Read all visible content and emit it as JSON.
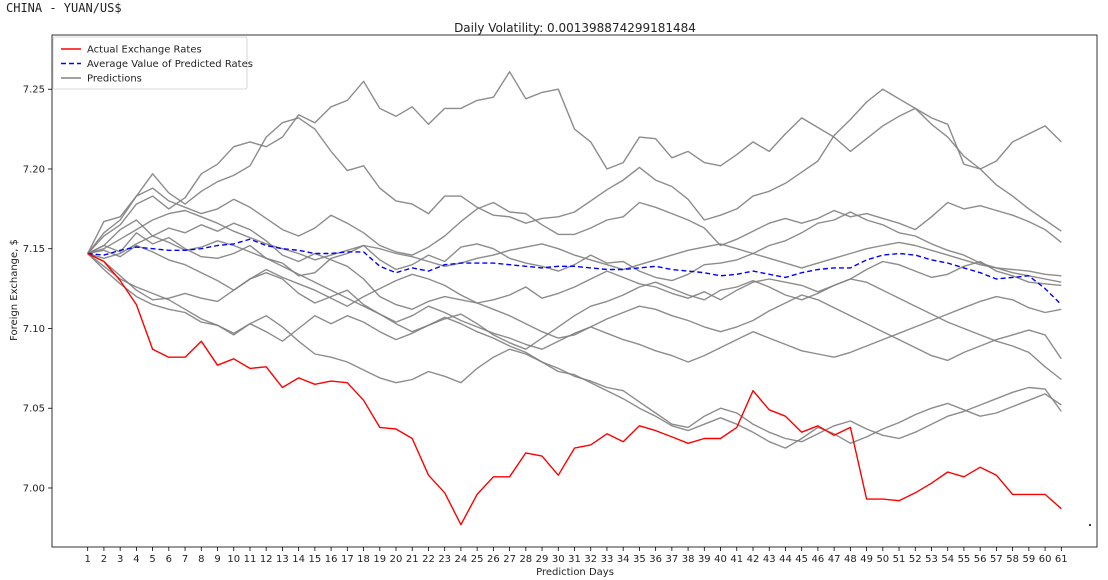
{
  "header": {
    "label": "CHINA - YUAN/US$"
  },
  "chart_data": {
    "type": "line",
    "title": "Daily Volatility: 0.001398874299181484",
    "xlabel": "Prediction Days",
    "ylabel": "Foreign Exchange, $",
    "xlim": [
      -1.2,
      63.2
    ],
    "ylim": [
      6.963,
      7.284
    ],
    "x": [
      1,
      2,
      3,
      4,
      5,
      6,
      7,
      8,
      9,
      10,
      11,
      12,
      13,
      14,
      15,
      16,
      17,
      18,
      19,
      20,
      21,
      22,
      23,
      24,
      25,
      26,
      27,
      28,
      29,
      30,
      31,
      32,
      33,
      34,
      35,
      36,
      37,
      38,
      39,
      40,
      41,
      42,
      43,
      44,
      45,
      46,
      47,
      48,
      49,
      50,
      51,
      52,
      53,
      54,
      55,
      56,
      57,
      58,
      59,
      60,
      61
    ],
    "x_tick_labels": [
      "1",
      "2",
      "3",
      "4",
      "5",
      "6",
      "7",
      "8",
      "9",
      "10",
      "11",
      "12",
      "13",
      "14",
      "15",
      "16",
      "17",
      "18",
      "19",
      "20",
      "21",
      "22",
      "23",
      "24",
      "25",
      "26",
      "27",
      "28",
      "29",
      "30",
      "31",
      "32",
      "33",
      "34",
      "35",
      "36",
      "37",
      "38",
      "39",
      "40",
      "41",
      "42",
      "43",
      "44",
      "45",
      "46",
      "47",
      "48",
      "49",
      "50",
      "51",
      "52",
      "53",
      "54",
      "55",
      "56",
      "57",
      "58",
      "59",
      "60",
      "61"
    ],
    "y_ticks": [
      7.0,
      7.05,
      7.1,
      7.15,
      7.2,
      7.25
    ],
    "y_tick_labels": [
      "7.00",
      "7.05",
      "7.10",
      "7.15",
      "7.20",
      "7.25"
    ],
    "grid": false,
    "legend_position": "top-left",
    "legend": [
      {
        "label": "Actual Exchange Rates",
        "color": "#ff0000",
        "style": "solid"
      },
      {
        "label": "Average Value of Predicted Rates",
        "color": "#0000ff",
        "style": "dashed"
      },
      {
        "label": "Predictions",
        "color": "#808080",
        "style": "solid"
      }
    ],
    "series": [
      {
        "name": "Actual Exchange Rates",
        "color": "#ff0000",
        "style": "solid",
        "values": [
          7.147,
          7.142,
          7.13,
          7.115,
          7.087,
          7.082,
          7.082,
          7.092,
          7.077,
          7.081,
          7.075,
          7.076,
          7.063,
          7.069,
          7.065,
          7.067,
          7.066,
          7.055,
          7.038,
          7.037,
          7.031,
          7.008,
          6.997,
          6.977,
          6.996,
          7.007,
          7.007,
          7.022,
          7.02,
          7.008,
          7.025,
          7.027,
          7.034,
          7.029,
          7.039,
          7.036,
          7.032,
          7.028,
          7.031,
          7.031,
          7.038,
          7.061,
          7.049,
          7.045,
          7.035,
          7.039,
          7.033,
          7.038,
          6.993,
          6.993,
          6.992,
          6.997,
          7.003,
          7.01,
          7.007,
          7.013,
          7.008,
          6.996,
          6.996,
          6.996,
          6.987
        ]
      },
      {
        "name": "Average Value of Predicted Rates",
        "color": "#0000ff",
        "style": "dashed",
        "values": [
          7.147,
          7.146,
          7.149,
          7.151,
          7.15,
          7.149,
          7.149,
          7.15,
          7.152,
          7.153,
          7.156,
          7.152,
          7.15,
          7.149,
          7.147,
          7.147,
          7.148,
          7.148,
          7.139,
          7.135,
          7.138,
          7.136,
          7.14,
          7.141,
          7.141,
          7.141,
          7.14,
          7.139,
          7.138,
          7.139,
          7.139,
          7.138,
          7.137,
          7.137,
          7.138,
          7.139,
          7.137,
          7.136,
          7.135,
          7.133,
          7.134,
          7.136,
          7.134,
          7.132,
          7.135,
          7.137,
          7.138,
          7.138,
          7.143,
          7.146,
          7.147,
          7.146,
          7.143,
          7.141,
          7.138,
          7.135,
          7.131,
          7.132,
          7.133,
          7.125,
          7.115
        ]
      },
      {
        "color": "#808080",
        "style": "solid",
        "values": [
          7.147,
          7.158,
          7.165,
          7.178,
          7.183,
          7.175,
          7.182,
          7.197,
          7.203,
          7.214,
          7.217,
          7.214,
          7.22,
          7.234,
          7.229,
          7.239,
          7.243,
          7.255,
          7.238,
          7.233,
          7.239,
          7.228,
          7.238,
          7.238,
          7.243,
          7.245,
          7.261,
          7.244,
          7.248,
          7.25,
          7.225,
          7.217,
          7.2,
          7.204,
          7.22,
          7.219,
          7.207,
          7.211,
          7.204,
          7.202,
          7.209,
          7.217,
          7.211,
          7.222,
          7.232,
          7.226,
          7.22,
          7.211,
          7.219,
          7.227,
          7.233,
          7.238,
          7.232,
          7.228,
          7.203,
          7.2,
          7.205,
          7.217,
          7.222,
          7.227,
          7.217
        ]
      },
      {
        "color": "#808080",
        "style": "solid",
        "values": [
          7.147,
          7.16,
          7.168,
          7.183,
          7.197,
          7.185,
          7.178,
          7.186,
          7.192,
          7.196,
          7.202,
          7.22,
          7.229,
          7.232,
          7.225,
          7.211,
          7.199,
          7.202,
          7.188,
          7.18,
          7.178,
          7.172,
          7.183,
          7.183,
          7.176,
          7.171,
          7.17,
          7.166,
          7.169,
          7.17,
          7.173,
          7.18,
          7.187,
          7.193,
          7.201,
          7.193,
          7.189,
          7.181,
          7.168,
          7.171,
          7.175,
          7.183,
          7.186,
          7.191,
          7.198,
          7.205,
          7.221,
          7.231,
          7.242,
          7.25,
          7.244,
          7.238,
          7.228,
          7.22,
          7.208,
          7.2,
          7.19,
          7.183,
          7.175,
          7.168,
          7.161
        ]
      },
      {
        "color": "#808080",
        "style": "solid",
        "values": [
          7.147,
          7.167,
          7.17,
          7.183,
          7.188,
          7.18,
          7.176,
          7.172,
          7.175,
          7.181,
          7.176,
          7.169,
          7.162,
          7.158,
          7.163,
          7.171,
          7.166,
          7.16,
          7.152,
          7.148,
          7.146,
          7.151,
          7.158,
          7.167,
          7.175,
          7.179,
          7.173,
          7.172,
          7.165,
          7.159,
          7.159,
          7.163,
          7.168,
          7.17,
          7.179,
          7.176,
          7.172,
          7.168,
          7.163,
          7.152,
          7.156,
          7.161,
          7.166,
          7.169,
          7.166,
          7.169,
          7.174,
          7.17,
          7.172,
          7.169,
          7.166,
          7.162,
          7.17,
          7.179,
          7.175,
          7.177,
          7.174,
          7.171,
          7.167,
          7.162,
          7.154
        ]
      },
      {
        "color": "#808080",
        "style": "solid",
        "values": [
          7.147,
          7.152,
          7.148,
          7.16,
          7.153,
          7.157,
          7.15,
          7.145,
          7.144,
          7.147,
          7.152,
          7.144,
          7.141,
          7.133,
          7.135,
          7.144,
          7.147,
          7.152,
          7.143,
          7.137,
          7.14,
          7.146,
          7.142,
          7.151,
          7.153,
          7.15,
          7.144,
          7.141,
          7.139,
          7.136,
          7.14,
          7.146,
          7.141,
          7.142,
          7.136,
          7.132,
          7.13,
          7.134,
          7.14,
          7.141,
          7.143,
          7.147,
          7.152,
          7.155,
          7.16,
          7.166,
          7.168,
          7.173,
          7.168,
          7.165,
          7.16,
          7.158,
          7.153,
          7.149,
          7.146,
          7.141,
          7.138,
          7.137,
          7.136,
          7.134,
          7.133
        ]
      },
      {
        "color": "#808080",
        "style": "solid",
        "values": [
          7.147,
          7.152,
          7.162,
          7.168,
          7.158,
          7.163,
          7.16,
          7.165,
          7.161,
          7.166,
          7.162,
          7.155,
          7.146,
          7.142,
          7.147,
          7.143,
          7.139,
          7.131,
          7.12,
          7.115,
          7.112,
          7.117,
          7.12,
          7.118,
          7.116,
          7.118,
          7.121,
          7.126,
          7.119,
          7.122,
          7.126,
          7.131,
          7.136,
          7.132,
          7.128,
          7.126,
          7.122,
          7.119,
          7.123,
          7.118,
          7.124,
          7.129,
          7.131,
          7.129,
          7.127,
          7.123,
          7.127,
          7.131,
          7.137,
          7.142,
          7.14,
          7.136,
          7.132,
          7.134,
          7.139,
          7.142,
          7.136,
          7.133,
          7.129,
          7.128,
          7.127
        ]
      },
      {
        "color": "#808080",
        "style": "solid",
        "values": [
          7.147,
          7.142,
          7.133,
          7.124,
          7.118,
          7.119,
          7.122,
          7.119,
          7.117,
          7.124,
          7.131,
          7.135,
          7.131,
          7.122,
          7.116,
          7.12,
          7.124,
          7.115,
          7.109,
          7.103,
          7.098,
          7.102,
          7.106,
          7.109,
          7.103,
          7.096,
          7.091,
          7.087,
          7.094,
          7.101,
          7.108,
          7.114,
          7.117,
          7.121,
          7.126,
          7.129,
          7.125,
          7.121,
          7.118,
          7.124,
          7.126,
          7.13,
          7.126,
          7.121,
          7.118,
          7.122,
          7.127,
          7.131,
          7.129,
          7.124,
          7.119,
          7.114,
          7.109,
          7.104,
          7.1,
          7.096,
          7.092,
          7.089,
          7.085,
          7.076,
          7.068
        ]
      },
      {
        "color": "#808080",
        "style": "solid",
        "values": [
          7.147,
          7.137,
          7.128,
          7.12,
          7.115,
          7.112,
          7.11,
          7.104,
          7.102,
          7.096,
          7.103,
          7.108,
          7.101,
          7.092,
          7.084,
          7.082,
          7.079,
          7.074,
          7.069,
          7.066,
          7.068,
          7.073,
          7.07,
          7.066,
          7.075,
          7.082,
          7.087,
          7.084,
          7.079,
          7.075,
          7.07,
          7.067,
          7.063,
          7.061,
          7.054,
          7.047,
          7.04,
          7.038,
          7.045,
          7.05,
          7.047,
          7.04,
          7.035,
          7.031,
          7.029,
          7.034,
          7.039,
          7.042,
          7.037,
          7.033,
          7.031,
          7.035,
          7.04,
          7.045,
          7.048,
          7.052,
          7.056,
          7.06,
          7.063,
          7.062,
          7.048
        ]
      },
      {
        "color": "#808080",
        "style": "solid",
        "values": [
          7.147,
          7.139,
          7.131,
          7.126,
          7.122,
          7.118,
          7.112,
          7.106,
          7.102,
          7.097,
          7.103,
          7.098,
          7.092,
          7.1,
          7.108,
          7.103,
          7.108,
          7.104,
          7.098,
          7.093,
          7.097,
          7.102,
          7.107,
          7.103,
          7.098,
          7.094,
          7.089,
          7.085,
          7.079,
          7.073,
          7.071,
          7.066,
          7.061,
          7.056,
          7.05,
          7.045,
          7.039,
          7.036,
          7.04,
          7.044,
          7.04,
          7.035,
          7.029,
          7.025,
          7.031,
          7.038,
          7.034,
          7.028,
          7.032,
          7.037,
          7.041,
          7.046,
          7.05,
          7.053,
          7.049,
          7.045,
          7.047,
          7.051,
          7.055,
          7.059,
          7.052
        ]
      },
      {
        "color": "#808080",
        "style": "solid",
        "values": [
          7.147,
          7.149,
          7.145,
          7.152,
          7.148,
          7.143,
          7.14,
          7.135,
          7.13,
          7.124,
          7.131,
          7.137,
          7.132,
          7.128,
          7.124,
          7.119,
          7.114,
          7.12,
          7.125,
          7.13,
          7.134,
          7.131,
          7.127,
          7.121,
          7.116,
          7.112,
          7.108,
          7.103,
          7.098,
          7.094,
          7.096,
          7.101,
          7.106,
          7.11,
          7.114,
          7.112,
          7.108,
          7.105,
          7.101,
          7.098,
          7.101,
          7.105,
          7.111,
          7.116,
          7.121,
          7.118,
          7.113,
          7.108,
          7.103,
          7.098,
          7.093,
          7.088,
          7.083,
          7.08,
          7.085,
          7.089,
          7.093,
          7.096,
          7.099,
          7.096,
          7.081
        ]
      },
      {
        "color": "#808080",
        "style": "solid",
        "values": [
          7.147,
          7.144,
          7.147,
          7.153,
          7.158,
          7.154,
          7.149,
          7.151,
          7.155,
          7.152,
          7.148,
          7.144,
          7.139,
          7.134,
          7.129,
          7.124,
          7.119,
          7.114,
          7.109,
          7.104,
          7.108,
          7.114,
          7.11,
          7.105,
          7.101,
          7.097,
          7.094,
          7.09,
          7.087,
          7.092,
          7.097,
          7.101,
          7.097,
          7.093,
          7.09,
          7.086,
          7.083,
          7.079,
          7.083,
          7.088,
          7.093,
          7.098,
          7.094,
          7.09,
          7.086,
          7.084,
          7.082,
          7.085,
          7.089,
          7.093,
          7.097,
          7.101,
          7.105,
          7.109,
          7.113,
          7.117,
          7.12,
          7.118,
          7.113,
          7.11,
          7.112
        ]
      },
      {
        "color": "#808080",
        "style": "solid",
        "values": [
          7.147,
          7.15,
          7.156,
          7.162,
          7.168,
          7.172,
          7.174,
          7.17,
          7.166,
          7.161,
          7.157,
          7.153,
          7.15,
          7.147,
          7.143,
          7.146,
          7.149,
          7.152,
          7.15,
          7.147,
          7.145,
          7.142,
          7.139,
          7.141,
          7.144,
          7.146,
          7.149,
          7.151,
          7.153,
          7.15,
          7.146,
          7.143,
          7.14,
          7.137,
          7.14,
          7.143,
          7.146,
          7.149,
          7.151,
          7.153,
          7.15,
          7.147,
          7.144,
          7.141,
          7.138,
          7.141,
          7.144,
          7.147,
          7.15,
          7.152,
          7.154,
          7.152,
          7.149,
          7.146,
          7.143,
          7.14,
          7.138,
          7.135,
          7.133,
          7.131,
          7.129
        ]
      }
    ]
  }
}
